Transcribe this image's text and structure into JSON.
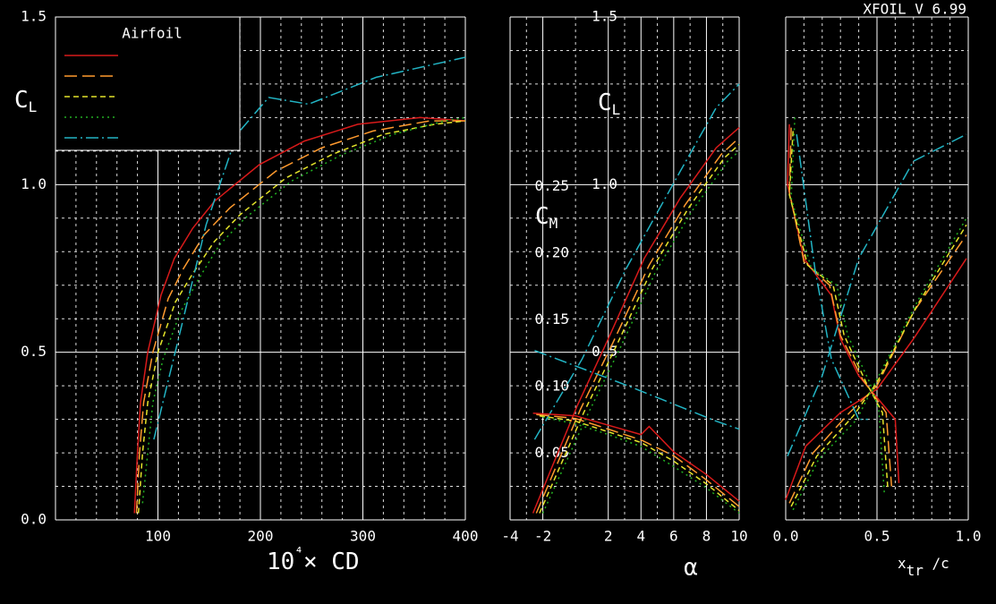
{
  "chart_data": [
    {
      "type": "line",
      "xlabel": "10⁴× CD",
      "ylabel": "CL",
      "legend_title": "Airfoil",
      "xlim": [
        0,
        400
      ],
      "ylim": [
        0,
        1.5
      ],
      "xticks": [
        100,
        200,
        300,
        400
      ],
      "yticks": [
        {
          "value": 0,
          "label": "0.0"
        },
        0.5,
        {
          "value": 1,
          "label": "1.0"
        },
        1.5
      ],
      "grid": true,
      "series": [
        {
          "color": "#d81a1a",
          "dash": "solid",
          "x": [
            77,
            80,
            83,
            90,
            103,
            116,
            134,
            155,
            199,
            243,
            295,
            356,
            400
          ],
          "values": [
            0.02,
            0.2,
            0.35,
            0.5,
            0.67,
            0.78,
            0.87,
            0.95,
            1.06,
            1.13,
            1.18,
            1.2,
            1.19
          ]
        },
        {
          "color": "#ff9a2e",
          "dash": "dashed",
          "x": [
            79,
            82,
            86,
            95,
            110,
            125,
            145,
            170,
            215,
            260,
            310,
            365,
            400
          ],
          "values": [
            0.02,
            0.2,
            0.35,
            0.5,
            0.66,
            0.75,
            0.85,
            0.93,
            1.04,
            1.11,
            1.16,
            1.19,
            1.19
          ]
        },
        {
          "color": "#e4e42a",
          "dash": "short-dashed",
          "x": [
            81,
            85,
            90,
            100,
            117,
            133,
            155,
            180,
            225,
            270,
            320,
            370,
            400
          ],
          "values": [
            0.02,
            0.2,
            0.35,
            0.5,
            0.65,
            0.73,
            0.83,
            0.91,
            1.02,
            1.09,
            1.15,
            1.18,
            1.19
          ]
        },
        {
          "color": "#22b022",
          "dash": "dotted",
          "x": [
            85,
            90,
            95,
            105,
            122,
            140,
            160,
            185,
            230,
            280,
            330,
            380,
            400
          ],
          "values": [
            0.05,
            0.2,
            0.35,
            0.48,
            0.62,
            0.72,
            0.82,
            0.9,
            1.01,
            1.09,
            1.15,
            1.19,
            1.2
          ]
        },
        {
          "color": "#22b4c4",
          "dash": "dash-dot",
          "x": [
            96,
            120,
            147,
            177,
            208,
            247,
            313,
            400
          ],
          "values": [
            0.24,
            0.54,
            0.88,
            1.15,
            1.26,
            1.24,
            1.32,
            1.38
          ]
        }
      ]
    },
    {
      "type": "line",
      "xlabel": "α",
      "ylabel": "CL",
      "y2label": "CM",
      "xlim": [
        -4,
        10
      ],
      "ylim": [
        0,
        1.5
      ],
      "y2lim": [
        0,
        0.377
      ],
      "xticks": [
        -4,
        -2,
        2,
        4,
        6,
        8,
        10
      ],
      "yticks": [
        0.5,
        {
          "value": 1,
          "label": "1.0"
        },
        1.5
      ],
      "y2ticks": [
        0.05,
        {
          "value": 0.1,
          "label": "0.10"
        },
        0.15,
        {
          "value": 0.2,
          "label": "0.20"
        },
        0.25
      ],
      "grid": true,
      "series": [
        {
          "color": "#d81a1a",
          "dash": "solid",
          "x": [
            -2.6,
            0.1,
            2.0,
            4.2,
            6.4,
            8.6,
            10
          ],
          "values": [
            0.02,
            0.34,
            0.54,
            0.78,
            0.96,
            1.11,
            1.17
          ]
        },
        {
          "color": "#ff9a2e",
          "dash": "dashed",
          "x": [
            -2.4,
            0.3,
            2.3,
            4.5,
            6.7,
            8.9,
            10
          ],
          "values": [
            0.02,
            0.33,
            0.53,
            0.76,
            0.94,
            1.09,
            1.14
          ]
        },
        {
          "color": "#e4e42a",
          "dash": "short-dashed",
          "x": [
            -2.2,
            0.5,
            2.5,
            4.7,
            6.9,
            9.1,
            10
          ],
          "values": [
            0.02,
            0.32,
            0.52,
            0.75,
            0.93,
            1.08,
            1.12
          ]
        },
        {
          "color": "#22b022",
          "dash": "dotted",
          "x": [
            -2.0,
            0.7,
            2.7,
            4.9,
            7.1,
            9.3,
            10
          ],
          "values": [
            0.02,
            0.31,
            0.51,
            0.74,
            0.92,
            1.07,
            1.1
          ]
        },
        {
          "color": "#22b4c4",
          "dash": "dash-dot",
          "x": [
            -2.5,
            0.4,
            3.1,
            6.4,
            8.6,
            10
          ],
          "values": [
            0.24,
            0.48,
            0.75,
            1.04,
            1.23,
            1.3
          ]
        },
        {
          "color": "#d81a1a",
          "dash": "solid",
          "axis": "y2",
          "x": [
            -2.6,
            0,
            2,
            4,
            4.5,
            6,
            8,
            10
          ],
          "values": [
            0.08,
            0.078,
            0.071,
            0.064,
            0.07,
            0.051,
            0.034,
            0.014
          ]
        },
        {
          "color": "#ff9a2e",
          "dash": "dashed",
          "axis": "y2",
          "x": [
            -2.4,
            0,
            2,
            4,
            6,
            8,
            10
          ],
          "values": [
            0.079,
            0.076,
            0.068,
            0.06,
            0.048,
            0.03,
            0.01
          ]
        },
        {
          "color": "#e4e42a",
          "dash": "short-dashed",
          "axis": "y2",
          "x": [
            -2.2,
            0,
            2,
            4,
            6,
            8,
            10
          ],
          "values": [
            0.078,
            0.074,
            0.066,
            0.058,
            0.044,
            0.027,
            0.007
          ]
        },
        {
          "color": "#22b022",
          "dash": "dotted",
          "axis": "y2",
          "x": [
            -2.0,
            0,
            2,
            4,
            6,
            8,
            10
          ],
          "values": [
            0.077,
            0.072,
            0.064,
            0.055,
            0.04,
            0.024,
            0.005
          ]
        },
        {
          "color": "#22b4c4",
          "dash": "dash-dot",
          "axis": "y2",
          "x": [
            -2.5,
            3.1,
            8.6,
            10
          ],
          "values": [
            0.127,
            0.101,
            0.074,
            0.068
          ]
        }
      ]
    },
    {
      "type": "line",
      "title": "XFOIL V 6.99",
      "xlabel": "xtr /c",
      "xlim": [
        0,
        1
      ],
      "ylim": [
        0,
        1.5
      ],
      "xticks": [
        {
          "value": 0,
          "label": "0.0"
        },
        0.5,
        {
          "value": 1,
          "label": "1.0"
        }
      ],
      "grid": true,
      "series": [
        {
          "color": "#d81a1a",
          "dash": "solid",
          "x": [
            0.02,
            0.01,
            0.1,
            0.25,
            0.3,
            0.4,
            0.6,
            0.62
          ],
          "values": [
            1.18,
            1.0,
            0.78,
            0.67,
            0.54,
            0.43,
            0.3,
            0.11
          ]
        },
        {
          "color": "#d81a1a",
          "dash": "solid",
          "x": [
            0,
            0.11,
            0.3,
            0.5,
            0.7,
            0.99
          ],
          "values": [
            0.06,
            0.22,
            0.32,
            0.39,
            0.54,
            0.78
          ]
        },
        {
          "color": "#ff9a2e",
          "dash": "dashed",
          "x": [
            0.03,
            0.02,
            0.1,
            0.24,
            0.3,
            0.42,
            0.55,
            0.58
          ],
          "values": [
            1.17,
            0.98,
            0.77,
            0.7,
            0.55,
            0.42,
            0.32,
            0.1
          ]
        },
        {
          "color": "#ff9a2e",
          "dash": "dashed",
          "x": [
            0.02,
            0.15,
            0.35,
            0.5,
            0.7,
            0.99
          ],
          "values": [
            0.05,
            0.2,
            0.32,
            0.4,
            0.62,
            0.85
          ]
        },
        {
          "color": "#e4e42a",
          "dash": "short-dashed",
          "x": [
            0.04,
            0.02,
            0.12,
            0.26,
            0.32,
            0.44,
            0.53,
            0.56
          ],
          "values": [
            1.16,
            0.97,
            0.76,
            0.7,
            0.55,
            0.41,
            0.32,
            0.09
          ]
        },
        {
          "color": "#e4e42a",
          "dash": "short-dashed",
          "x": [
            0.03,
            0.17,
            0.37,
            0.5,
            0.72,
            0.99
          ],
          "values": [
            0.04,
            0.19,
            0.31,
            0.41,
            0.64,
            0.88
          ]
        },
        {
          "color": "#22b022",
          "dash": "dotted",
          "x": [
            0.05,
            0.03,
            0.14,
            0.28,
            0.34,
            0.46,
            0.51,
            0.54
          ],
          "values": [
            1.2,
            0.96,
            0.75,
            0.7,
            0.55,
            0.41,
            0.33,
            0.08
          ]
        },
        {
          "color": "#22b022",
          "dash": "dotted",
          "x": [
            0.04,
            0.18,
            0.39,
            0.5,
            0.73,
            0.99
          ],
          "values": [
            0.03,
            0.18,
            0.3,
            0.42,
            0.66,
            0.9
          ]
        },
        {
          "color": "#22b4c4",
          "dash": "dash-dot",
          "x": [
            0.06,
            0.16,
            0.25,
            0.4,
            0.45
          ],
          "values": [
            1.15,
            0.75,
            0.48,
            0.3,
            0.3
          ]
        },
        {
          "color": "#22b4c4",
          "dash": "dash-dot",
          "x": [
            0.01,
            0.2,
            0.4,
            0.7,
            0.99
          ],
          "values": [
            0.19,
            0.43,
            0.78,
            1.07,
            1.15
          ]
        }
      ]
    }
  ]
}
